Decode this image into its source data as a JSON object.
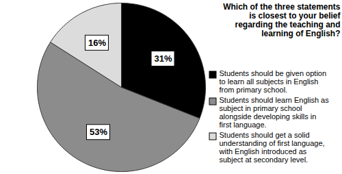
{
  "chart_data": {
    "type": "pie",
    "title": "Which of the three statements is closest to your belief regarding the teaching and learning of English?",
    "categories": [
      "Students should be given option to learn all subjects in English from primary school.",
      "Students should learn English as subject in primary school alongside developing skills in first language.",
      "Students should get a solid understanding of first language, with English introduced as subject at secondary level."
    ],
    "values": [
      31,
      53,
      16
    ],
    "value_labels": [
      "31%",
      "53%",
      "16%"
    ],
    "colors": [
      "#000000",
      "#8c8c8c",
      "#dcdcdc"
    ],
    "data_labels": true,
    "legend": "right"
  }
}
